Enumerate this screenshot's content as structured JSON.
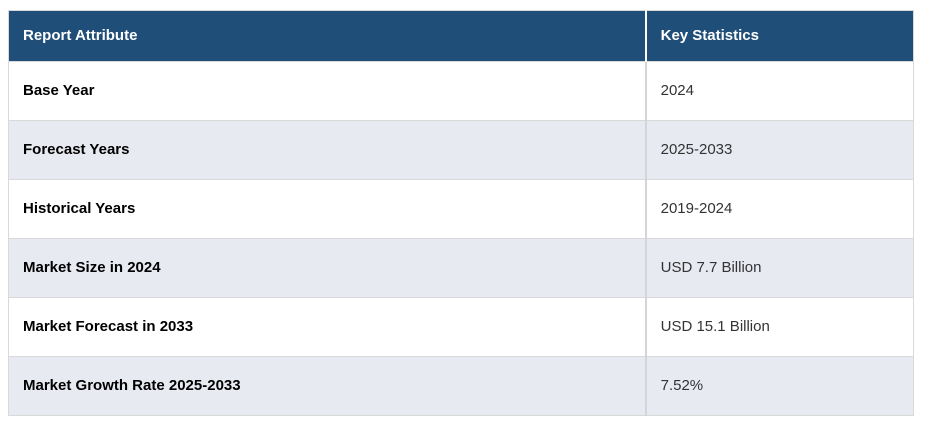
{
  "chart_data": {
    "type": "table",
    "columns": [
      "Report Attribute",
      "Key Statistics"
    ],
    "rows": [
      [
        "Base Year",
        "2024"
      ],
      [
        "Forecast Years",
        "2025-2033"
      ],
      [
        "Historical Years",
        "2019-2024"
      ],
      [
        "Market Size in 2024",
        "USD 7.7 Billion"
      ],
      [
        "Market Forecast in 2033",
        "USD 15.1 Billion"
      ],
      [
        "Market Growth Rate 2025-2033",
        "7.52%"
      ]
    ],
    "layout_hints": {
      "header_position": "top",
      "alternating_rows": true,
      "first_column_bold": true
    }
  },
  "colors": {
    "header_bg": "#1f4e79",
    "header_text": "#ffffff",
    "alt_row_bg": "#e8eaf2",
    "row_bg": "#ffffff",
    "border": "#d9d9d9",
    "attribute_text": "#000000",
    "value_text": "#333333"
  }
}
